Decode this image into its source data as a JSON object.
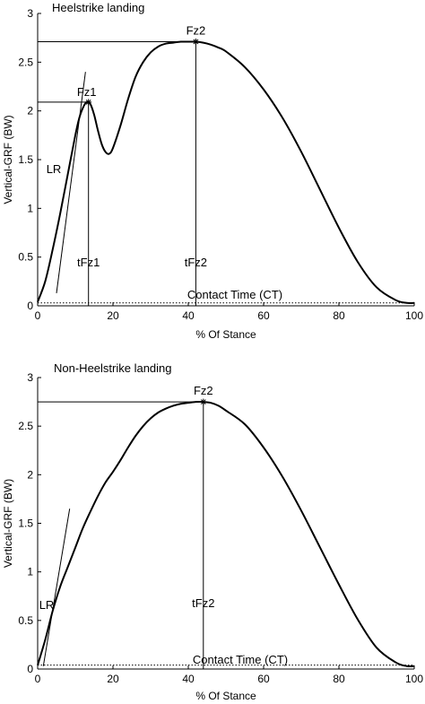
{
  "chart_data": [
    {
      "type": "line",
      "title": "Heelstrike landing",
      "xlabel": "% Of Stance",
      "ylabel": "Vertical-GRF (BW)",
      "xlim": [
        0,
        100
      ],
      "ylim": [
        0,
        3
      ],
      "xticks": [
        0,
        20,
        40,
        60,
        80,
        100
      ],
      "xtick_labels": [
        "0",
        "20",
        "40",
        "60",
        "80",
        "100"
      ],
      "yticks": [
        0,
        0.5,
        1,
        1.5,
        2,
        2.5,
        3
      ],
      "ytick_labels": [
        "0",
        "0.5",
        "1",
        "1.5",
        "2",
        "2.5",
        "3"
      ],
      "series": [
        {
          "x": [
            0,
            2,
            4,
            6,
            8,
            10,
            11,
            12,
            13,
            14,
            15,
            16,
            17,
            18,
            19,
            20,
            22,
            24,
            26,
            28,
            30,
            32,
            34,
            36,
            38,
            40,
            42,
            44,
            46,
            48,
            50,
            55,
            60,
            65,
            70,
            75,
            80,
            85,
            90,
            95,
            98,
            100
          ],
          "y": [
            0.04,
            0.25,
            0.58,
            0.95,
            1.35,
            1.75,
            1.92,
            2.03,
            2.09,
            2.07,
            1.96,
            1.8,
            1.66,
            1.58,
            1.56,
            1.62,
            1.85,
            2.12,
            2.35,
            2.5,
            2.6,
            2.66,
            2.69,
            2.7,
            2.71,
            2.71,
            2.71,
            2.7,
            2.68,
            2.65,
            2.61,
            2.45,
            2.22,
            1.93,
            1.58,
            1.19,
            0.8,
            0.45,
            0.19,
            0.06,
            0.03,
            0.03
          ]
        }
      ],
      "contact_time_y": 0.03,
      "loading_rate_line": {
        "x": [
          5,
          12.7
        ],
        "y": [
          0.13,
          2.4
        ]
      },
      "markers": [
        {
          "label": "Fz1",
          "x": 13.5,
          "y": 2.09,
          "time_label": "tFz1"
        },
        {
          "label": "Fz2",
          "x": 42,
          "y": 2.71,
          "time_label": "tFz2"
        }
      ],
      "annotations": {
        "lr": "LR",
        "contact_time": "Contact Time (CT)"
      },
      "grid": false
    },
    {
      "type": "line",
      "title": "Non-Heelstrike landing",
      "xlabel": "% Of Stance",
      "ylabel": "Vertical-GRF (BW)",
      "xlim": [
        0,
        100
      ],
      "ylim": [
        0,
        3
      ],
      "xticks": [
        0,
        20,
        40,
        60,
        80,
        100
      ],
      "xtick_labels": [
        "0",
        "20",
        "40",
        "60",
        "80",
        "100"
      ],
      "yticks": [
        0,
        0.5,
        1,
        1.5,
        2,
        2.5,
        3
      ],
      "ytick_labels": [
        "0",
        "0.5",
        "1",
        "1.5",
        "2",
        "2.5",
        "3"
      ],
      "series": [
        {
          "x": [
            0,
            2,
            4,
            6,
            8,
            10,
            12,
            14,
            16,
            18,
            20,
            22,
            24,
            26,
            28,
            30,
            32,
            34,
            36,
            38,
            40,
            42,
            44,
            46,
            48,
            50,
            55,
            60,
            65,
            70,
            75,
            80,
            85,
            90,
            95,
            98,
            100
          ],
          "y": [
            0.04,
            0.3,
            0.6,
            0.85,
            1.05,
            1.25,
            1.45,
            1.62,
            1.78,
            1.92,
            2.03,
            2.15,
            2.28,
            2.4,
            2.5,
            2.58,
            2.64,
            2.68,
            2.71,
            2.73,
            2.74,
            2.75,
            2.75,
            2.74,
            2.71,
            2.66,
            2.52,
            2.28,
            1.98,
            1.63,
            1.25,
            0.87,
            0.51,
            0.22,
            0.07,
            0.03,
            0.03
          ]
        }
      ],
      "contact_time_y": 0.04,
      "loading_rate_line": {
        "x": [
          1.5,
          8.5
        ],
        "y": [
          0.03,
          1.65
        ]
      },
      "markers": [
        {
          "label": "Fz2",
          "x": 44,
          "y": 2.75,
          "time_label": "tFz2"
        }
      ],
      "annotations": {
        "lr": "LR",
        "contact_time": "Contact Time (CT)"
      },
      "grid": false
    }
  ]
}
